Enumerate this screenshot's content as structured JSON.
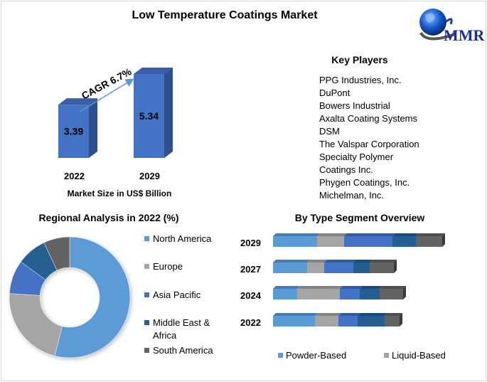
{
  "title": "Low Temperature Coatings Market",
  "logo": {
    "text": "MMR"
  },
  "colors": {
    "bar": "#4472C4",
    "bar_side": "#2F4F8F",
    "bar_top": "#3A5FA8",
    "arrow": "#5B9BD5"
  },
  "key_players": {
    "title": "Key Players",
    "items": [
      "PPG Industries, Inc.",
      "DuPont",
      "Bowers Industrial",
      "Axalta Coating Systems",
      "DSM",
      "The Valspar Corporation",
      "Specialty Polymer",
      "Coatings Inc.",
      "Phygen Coatings, Inc.",
      "Michelman, Inc."
    ]
  },
  "chart_data": [
    {
      "type": "bar",
      "categories": [
        "2022",
        "2029"
      ],
      "values": [
        3.39,
        5.34
      ],
      "data_labels": [
        "3.39",
        "5.34"
      ],
      "xlabel": "Market Size in US$ Billion",
      "annotation": "CAGR 6.7%"
    },
    {
      "type": "pie",
      "title": "Regional Analysis in 2022 (%)",
      "donut": true,
      "legend": "right",
      "labels": [
        "North America",
        "Europe",
        "Asia Pacific",
        "Middle East & Africa",
        "South America"
      ],
      "legend_lines": [
        [
          "North America"
        ],
        [
          "Europe"
        ],
        [
          "Asia Pacific"
        ],
        [
          "Middle East &",
          "Africa"
        ],
        [
          "South America"
        ]
      ],
      "values": [
        54,
        22,
        9,
        8,
        7
      ],
      "colors": [
        "#5B9BD5",
        "#A5A5A5",
        "#4472C4",
        "#255E91",
        "#636363"
      ]
    },
    {
      "type": "bar",
      "orientation": "horizontal",
      "stacked": true,
      "title": "By Type Segment Overview",
      "categories": [
        "2029",
        "2027",
        "2024",
        "2022"
      ],
      "series": [
        {
          "name": "Powder-Based",
          "values": [
            62,
            48,
            34,
            59
          ],
          "color": "#5B9BD5"
        },
        {
          "name": "Liquid-Based",
          "values": [
            38,
            24,
            60,
            33
          ],
          "color": "#A5A5A5"
        },
        {
          "values": [
            68,
            41,
            28,
            27
          ],
          "color": "#4472C4"
        },
        {
          "values": [
            33,
            23,
            28,
            38
          ],
          "color": "#255E91"
        },
        {
          "values": [
            37,
            34,
            33,
            21
          ],
          "color": "#636363"
        }
      ],
      "legend": "bottom",
      "grid": false
    }
  ]
}
